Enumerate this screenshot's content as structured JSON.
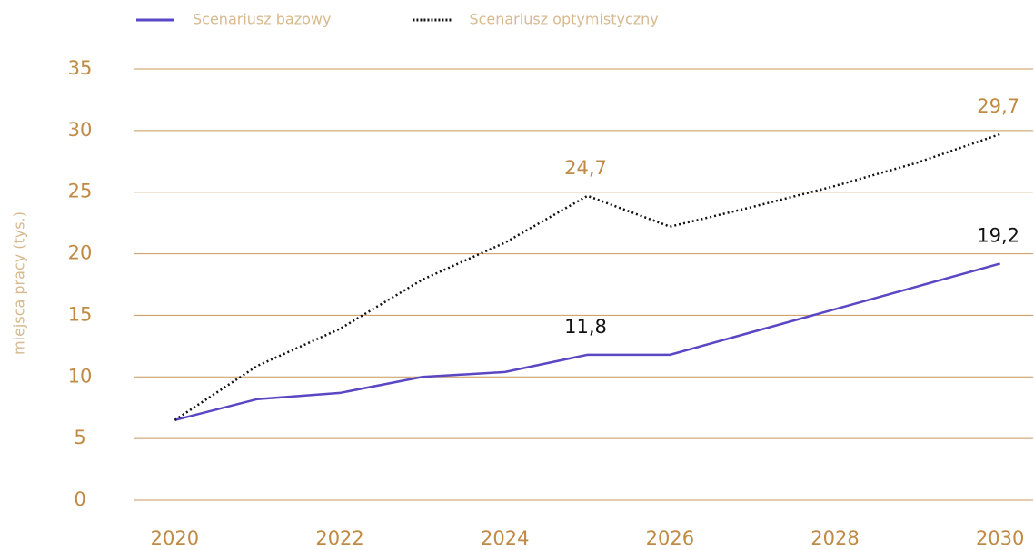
{
  "chart_data": {
    "type": "line",
    "y_label": "miejsca pracy (tys.)",
    "x": [
      2020,
      2021,
      2022,
      2023,
      2024,
      2025,
      2026,
      2027,
      2028,
      2029,
      2030
    ],
    "series": [
      {
        "name": "Scenariusz bazowy",
        "color": "#5a47c4",
        "style": "solid",
        "label_color": "#111111",
        "values": [
          6.5,
          8.2,
          8.7,
          10.0,
          10.4,
          11.8,
          11.8,
          13.65,
          15.5,
          17.35,
          19.2
        ],
        "value_labels": [
          null,
          null,
          null,
          null,
          null,
          "11,8",
          null,
          null,
          null,
          null,
          "19,2"
        ]
      },
      {
        "name": "Scenariusz optymistyczny",
        "color": "#111111",
        "style": "dotted",
        "label_color": "#c08a45",
        "values": [
          6.5,
          10.9,
          13.9,
          17.9,
          20.9,
          24.7,
          22.2,
          23.8,
          25.5,
          27.4,
          29.7
        ],
        "value_labels": [
          null,
          null,
          null,
          null,
          null,
          "24,7",
          null,
          null,
          null,
          null,
          "29,7"
        ]
      }
    ],
    "xlim": [
      2019.5,
      2030.4
    ],
    "xticks": [
      2020,
      2022,
      2024,
      2026,
      2028,
      2030
    ],
    "ylim": [
      0,
      35
    ],
    "yticks": [
      0,
      5,
      10,
      15,
      20,
      25,
      30,
      35
    ],
    "grid": true,
    "grid_color": "#c8975a",
    "legend": "top"
  }
}
